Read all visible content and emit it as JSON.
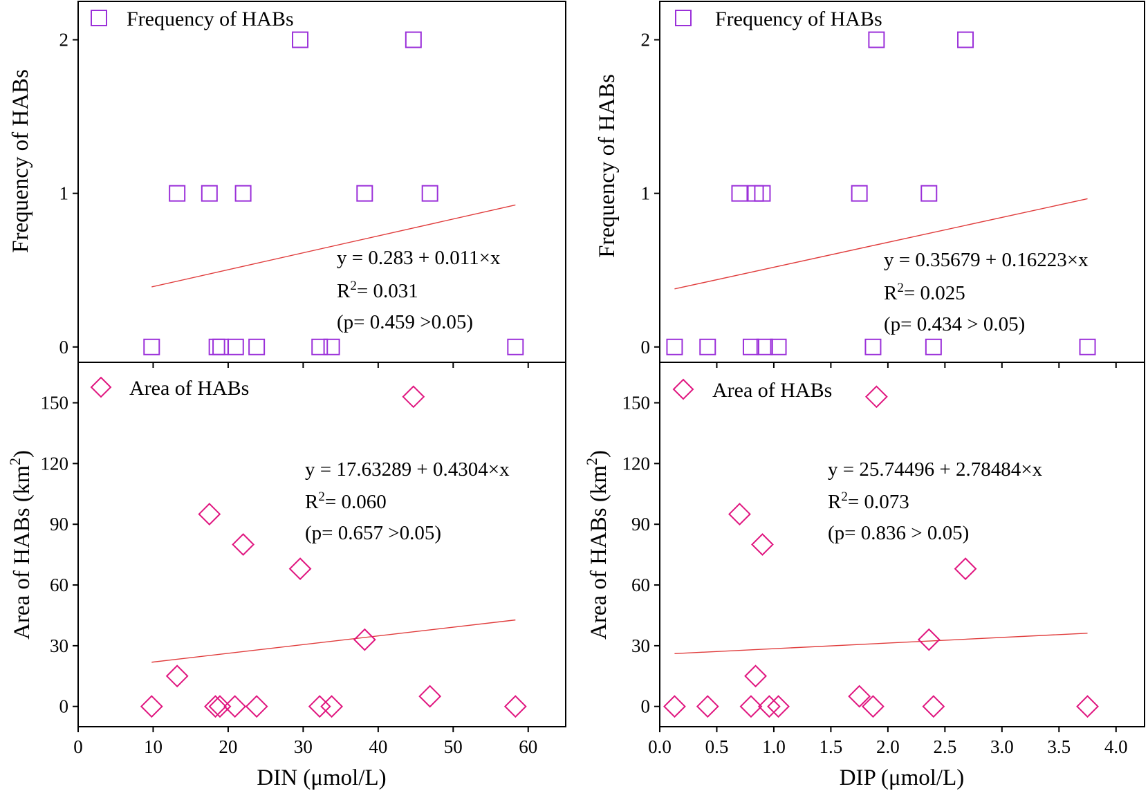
{
  "chart_data": [
    {
      "id": "p1",
      "type": "scatter",
      "panel": "top-left",
      "marker": "square",
      "marker_color": "#9b30d9",
      "fit_color": "#e03c3c",
      "legend": "Frequency of HABs",
      "ylabel": "Frequency of HABs",
      "xlabel": "",
      "xlim": [
        0,
        65
      ],
      "ylim": [
        -0.1,
        2.25
      ],
      "yticks": [
        0,
        1,
        2
      ],
      "yticklabels": [
        "0",
        "1",
        "2"
      ],
      "xticks": [
        0,
        10,
        20,
        30,
        40,
        50,
        60
      ],
      "points": [
        [
          9.8,
          0
        ],
        [
          18.5,
          0
        ],
        [
          19,
          0
        ],
        [
          21,
          0
        ],
        [
          23.8,
          0
        ],
        [
          32.2,
          0
        ],
        [
          33.8,
          0
        ],
        [
          58.3,
          0
        ],
        [
          13.2,
          1
        ],
        [
          17.5,
          1
        ],
        [
          22,
          1
        ],
        [
          38.2,
          1
        ],
        [
          46.9,
          1
        ],
        [
          29.6,
          2
        ],
        [
          44.7,
          2
        ]
      ],
      "fit": {
        "intercept": 0.283,
        "slope": 0.011,
        "x_range": [
          9.8,
          58.3
        ]
      },
      "annotation": {
        "eq": "y = 0.283 + 0.011×x",
        "r2_label": "R",
        "r2_sup": "2",
        "r2_value": "= 0.031",
        "p": "(p= 0.459 >0.05)"
      }
    },
    {
      "id": "p2",
      "type": "scatter",
      "panel": "top-right",
      "marker": "square",
      "marker_color": "#9b30d9",
      "fit_color": "#e03c3c",
      "legend": "Frequency of HABs",
      "ylabel": "Frequency of HABs",
      "xlabel": "",
      "xlim": [
        0,
        4.25
      ],
      "ylim": [
        -0.1,
        2.25
      ],
      "yticks": [
        0,
        1,
        2
      ],
      "yticklabels": [
        "0",
        "1",
        "2"
      ],
      "xticks": [
        0,
        0.5,
        1,
        1.5,
        2,
        2.5,
        3,
        3.5,
        4
      ],
      "points": [
        [
          0.13,
          0
        ],
        [
          0.42,
          0
        ],
        [
          0.8,
          0
        ],
        [
          0.92,
          0
        ],
        [
          1.04,
          0
        ],
        [
          1.87,
          0
        ],
        [
          2.4,
          0
        ],
        [
          3.75,
          0
        ],
        [
          0.7,
          1
        ],
        [
          0.84,
          1
        ],
        [
          0.9,
          1
        ],
        [
          1.75,
          1
        ],
        [
          2.36,
          1
        ],
        [
          1.9,
          2
        ],
        [
          2.68,
          2
        ]
      ],
      "fit": {
        "intercept": 0.35679,
        "slope": 0.16223,
        "x_range": [
          0.13,
          3.75
        ]
      },
      "annotation": {
        "eq": "y = 0.35679 + 0.16223×x",
        "r2_label": "R",
        "r2_sup": "2",
        "r2_value": "= 0.025",
        "p": "(p= 0.434 > 0.05)"
      }
    },
    {
      "id": "p3",
      "type": "scatter",
      "panel": "bottom-left",
      "marker": "diamond",
      "marker_color": "#e0157f",
      "fit_color": "#e03c3c",
      "legend": "Area of HABs",
      "ylabel": "Area of HABs (km",
      "ylabel_sup": "2",
      "ylabel_end": ")",
      "xlabel": "DIN (μmol/L)",
      "xlim": [
        0,
        65
      ],
      "ylim": [
        -10,
        170
      ],
      "yticks": [
        0,
        30,
        60,
        90,
        120,
        150
      ],
      "yticklabels": [
        "0",
        "30",
        "60",
        "90",
        "120",
        "150"
      ],
      "xticks": [
        0,
        10,
        20,
        30,
        40,
        50,
        60
      ],
      "xticklabels": [
        "0",
        "10",
        "20",
        "30",
        "40",
        "50",
        "60"
      ],
      "points": [
        [
          9.8,
          0
        ],
        [
          18.3,
          0
        ],
        [
          18.9,
          0
        ],
        [
          20.9,
          0
        ],
        [
          23.8,
          0
        ],
        [
          32.2,
          0
        ],
        [
          33.8,
          0
        ],
        [
          58.3,
          0
        ],
        [
          46.9,
          5
        ],
        [
          13.2,
          15
        ],
        [
          38.2,
          33
        ],
        [
          29.6,
          68
        ],
        [
          22,
          80
        ],
        [
          17.5,
          95
        ],
        [
          44.7,
          153
        ]
      ],
      "fit": {
        "intercept": 17.63289,
        "slope": 0.4304,
        "x_range": [
          9.8,
          58.3
        ]
      },
      "annotation": {
        "eq": "y = 17.63289 + 0.4304×x",
        "r2_label": "R",
        "r2_sup": "2",
        "r2_value": "= 0.060",
        "p": "(p= 0.657 >0.05)"
      }
    },
    {
      "id": "p4",
      "type": "scatter",
      "panel": "bottom-right",
      "marker": "diamond",
      "marker_color": "#e0157f",
      "fit_color": "#e03c3c",
      "legend": "Area of HABs",
      "ylabel": "Area of HABs (km",
      "ylabel_sup": "2",
      "ylabel_end": ")",
      "xlabel": "DIP (μmol/L)",
      "xlim": [
        0,
        4.25
      ],
      "ylim": [
        -10,
        170
      ],
      "yticks": [
        0,
        30,
        60,
        90,
        120,
        150
      ],
      "yticklabels": [
        "0",
        "30",
        "60",
        "90",
        "120",
        "150"
      ],
      "xticks": [
        0,
        0.5,
        1,
        1.5,
        2,
        2.5,
        3,
        3.5,
        4
      ],
      "xticklabels": [
        "0.0",
        "0.5",
        "1.0",
        "1.5",
        "2.0",
        "2.5",
        "3.0",
        "3.5",
        "4.0"
      ],
      "points": [
        [
          0.13,
          0
        ],
        [
          0.42,
          0
        ],
        [
          0.8,
          0
        ],
        [
          0.96,
          0
        ],
        [
          1.04,
          0
        ],
        [
          1.87,
          0
        ],
        [
          2.4,
          0
        ],
        [
          3.75,
          0
        ],
        [
          1.75,
          5
        ],
        [
          0.84,
          15
        ],
        [
          2.36,
          33
        ],
        [
          2.68,
          68
        ],
        [
          0.9,
          80
        ],
        [
          0.7,
          95
        ],
        [
          1.9,
          153
        ]
      ],
      "fit": {
        "intercept": 25.74496,
        "slope": 2.78484,
        "x_range": [
          0.13,
          3.75
        ]
      },
      "annotation": {
        "eq": "y = 25.74496 + 2.78484×x",
        "r2_label": "R",
        "r2_sup": "2",
        "r2_value": "= 0.073",
        "p": "(p= 0.836 > 0.05)"
      }
    }
  ]
}
